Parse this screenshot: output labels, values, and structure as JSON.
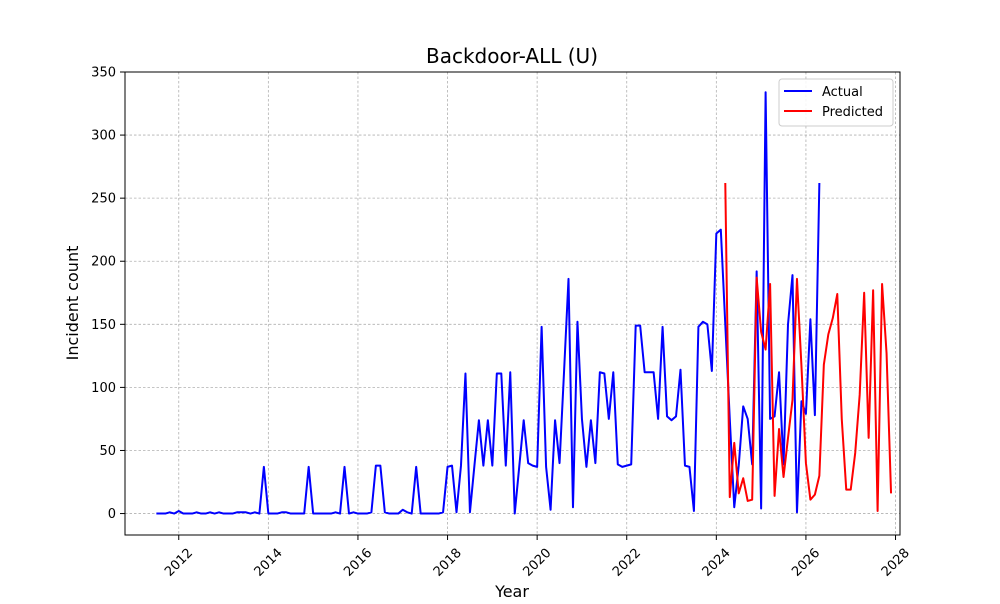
{
  "chart_data": {
    "type": "line",
    "title": "Backdoor-ALL (U)",
    "xlabel": "Year",
    "ylabel": "Incident count",
    "xlim": [
      2010.8,
      2028.1
    ],
    "ylim": [
      -17,
      350
    ],
    "x_ticks": [
      "2012",
      "2014",
      "2016",
      "2018",
      "2020",
      "2022",
      "2024",
      "2026",
      "2028"
    ],
    "y_ticks": [
      "0",
      "50",
      "100",
      "150",
      "200",
      "250",
      "300",
      "350"
    ],
    "grid": true,
    "legend_position": "top-right",
    "series": [
      {
        "name": "Actual",
        "color": "#0000ff",
        "points": [
          [
            2011.5,
            0
          ],
          [
            2011.6,
            0
          ],
          [
            2011.7,
            0
          ],
          [
            2011.8,
            1
          ],
          [
            2011.9,
            0
          ],
          [
            2012.0,
            2
          ],
          [
            2012.1,
            0
          ],
          [
            2012.2,
            0
          ],
          [
            2012.3,
            0
          ],
          [
            2012.4,
            1
          ],
          [
            2012.5,
            0
          ],
          [
            2012.6,
            0
          ],
          [
            2012.7,
            1
          ],
          [
            2012.8,
            0
          ],
          [
            2012.9,
            1
          ],
          [
            2013.0,
            0
          ],
          [
            2013.1,
            0
          ],
          [
            2013.2,
            0
          ],
          [
            2013.3,
            1
          ],
          [
            2013.4,
            1
          ],
          [
            2013.5,
            1
          ],
          [
            2013.6,
            0
          ],
          [
            2013.7,
            1
          ],
          [
            2013.8,
            0
          ],
          [
            2013.9,
            37
          ],
          [
            2014.0,
            0
          ],
          [
            2014.1,
            0
          ],
          [
            2014.2,
            0
          ],
          [
            2014.3,
            1
          ],
          [
            2014.4,
            1
          ],
          [
            2014.5,
            0
          ],
          [
            2014.6,
            0
          ],
          [
            2014.7,
            0
          ],
          [
            2014.8,
            0
          ],
          [
            2014.9,
            37
          ],
          [
            2015.0,
            0
          ],
          [
            2015.1,
            0
          ],
          [
            2015.2,
            0
          ],
          [
            2015.3,
            0
          ],
          [
            2015.4,
            0
          ],
          [
            2015.5,
            1
          ],
          [
            2015.6,
            0
          ],
          [
            2015.7,
            37
          ],
          [
            2015.8,
            0
          ],
          [
            2015.9,
            1
          ],
          [
            2016.0,
            0
          ],
          [
            2016.1,
            0
          ],
          [
            2016.2,
            0
          ],
          [
            2016.3,
            1
          ],
          [
            2016.4,
            38
          ],
          [
            2016.5,
            38
          ],
          [
            2016.6,
            1
          ],
          [
            2016.7,
            0
          ],
          [
            2016.8,
            0
          ],
          [
            2016.9,
            0
          ],
          [
            2017.0,
            3
          ],
          [
            2017.1,
            1
          ],
          [
            2017.2,
            0
          ],
          [
            2017.3,
            37
          ],
          [
            2017.4,
            0
          ],
          [
            2017.5,
            0
          ],
          [
            2017.6,
            0
          ],
          [
            2017.7,
            0
          ],
          [
            2017.8,
            0
          ],
          [
            2017.9,
            1
          ],
          [
            2018.0,
            37
          ],
          [
            2018.1,
            38
          ],
          [
            2018.2,
            1
          ],
          [
            2018.3,
            38
          ],
          [
            2018.4,
            111
          ],
          [
            2018.5,
            1
          ],
          [
            2018.6,
            38
          ],
          [
            2018.7,
            74
          ],
          [
            2018.8,
            38
          ],
          [
            2018.9,
            74
          ],
          [
            2019.0,
            38
          ],
          [
            2019.1,
            111
          ],
          [
            2019.2,
            111
          ],
          [
            2019.3,
            38
          ],
          [
            2019.4,
            112
          ],
          [
            2019.5,
            0
          ],
          [
            2019.6,
            37
          ],
          [
            2019.7,
            74
          ],
          [
            2019.8,
            40
          ],
          [
            2019.9,
            38
          ],
          [
            2020.0,
            37
          ],
          [
            2020.1,
            148
          ],
          [
            2020.2,
            37
          ],
          [
            2020.3,
            3
          ],
          [
            2020.4,
            74
          ],
          [
            2020.5,
            40
          ],
          [
            2020.6,
            112
          ],
          [
            2020.7,
            186
          ],
          [
            2020.8,
            5
          ],
          [
            2020.9,
            152
          ],
          [
            2021.0,
            75
          ],
          [
            2021.1,
            37
          ],
          [
            2021.2,
            74
          ],
          [
            2021.3,
            40
          ],
          [
            2021.4,
            112
          ],
          [
            2021.5,
            111
          ],
          [
            2021.6,
            75
          ],
          [
            2021.7,
            112
          ],
          [
            2021.8,
            39
          ],
          [
            2021.9,
            37
          ],
          [
            2022.0,
            38
          ],
          [
            2022.1,
            39
          ],
          [
            2022.2,
            149
          ],
          [
            2022.3,
            149
          ],
          [
            2022.4,
            112
          ],
          [
            2022.5,
            112
          ],
          [
            2022.6,
            112
          ],
          [
            2022.7,
            75
          ],
          [
            2022.8,
            148
          ],
          [
            2022.9,
            77
          ],
          [
            2023.0,
            74
          ],
          [
            2023.1,
            77
          ],
          [
            2023.2,
            114
          ],
          [
            2023.3,
            38
          ],
          [
            2023.4,
            37
          ],
          [
            2023.5,
            2
          ],
          [
            2023.6,
            148
          ],
          [
            2023.7,
            152
          ],
          [
            2023.8,
            150
          ],
          [
            2023.9,
            113
          ],
          [
            2024.0,
            222
          ],
          [
            2024.1,
            225
          ],
          [
            2024.2,
            150
          ],
          [
            2024.3,
            75
          ],
          [
            2024.4,
            5
          ],
          [
            2024.5,
            38
          ],
          [
            2024.6,
            85
          ],
          [
            2024.7,
            75
          ],
          [
            2024.8,
            39
          ],
          [
            2024.9,
            192
          ],
          [
            2025.0,
            4
          ],
          [
            2025.1,
            334
          ],
          [
            2025.2,
            75
          ],
          [
            2025.3,
            77
          ],
          [
            2025.4,
            112
          ],
          [
            2025.5,
            39
          ],
          [
            2025.6,
            150
          ],
          [
            2025.7,
            189
          ],
          [
            2025.8,
            1
          ],
          [
            2025.9,
            89
          ],
          [
            2026.0,
            79
          ],
          [
            2026.1,
            154
          ],
          [
            2026.2,
            78
          ],
          [
            2026.3,
            262
          ]
        ]
      },
      {
        "name": "Predicted",
        "color": "#ff0000",
        "points": [
          [
            2024.2,
            262
          ],
          [
            2024.3,
            13
          ],
          [
            2024.4,
            56
          ],
          [
            2024.5,
            16
          ],
          [
            2024.6,
            28
          ],
          [
            2024.7,
            10
          ],
          [
            2024.8,
            11
          ],
          [
            2024.9,
            187
          ],
          [
            2025.0,
            144
          ],
          [
            2025.1,
            130
          ],
          [
            2025.2,
            182
          ],
          [
            2025.3,
            14
          ],
          [
            2025.4,
            67
          ],
          [
            2025.5,
            29
          ],
          [
            2025.6,
            60
          ],
          [
            2025.7,
            90
          ],
          [
            2025.8,
            186
          ],
          [
            2025.9,
            117
          ],
          [
            2026.0,
            40
          ],
          [
            2026.1,
            11
          ],
          [
            2026.2,
            15
          ],
          [
            2026.3,
            30
          ],
          [
            2026.4,
            118
          ],
          [
            2026.5,
            142
          ],
          [
            2026.6,
            155
          ],
          [
            2026.7,
            174
          ],
          [
            2026.8,
            75
          ],
          [
            2026.9,
            19
          ],
          [
            2027.0,
            19
          ],
          [
            2027.1,
            48
          ],
          [
            2027.2,
            94
          ],
          [
            2027.3,
            175
          ],
          [
            2027.4,
            60
          ],
          [
            2027.5,
            177
          ],
          [
            2027.6,
            2
          ],
          [
            2027.7,
            182
          ],
          [
            2027.8,
            127
          ],
          [
            2027.9,
            16
          ]
        ]
      }
    ]
  }
}
